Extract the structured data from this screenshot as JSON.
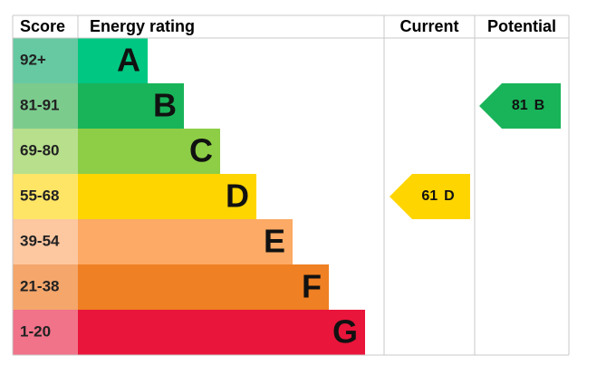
{
  "header": {
    "score": "Score",
    "rating": "Energy rating",
    "current": "Current",
    "potential": "Potential"
  },
  "bands": [
    {
      "score": "92+",
      "letter": "A",
      "color": "#00c781",
      "light": "#66c9a2"
    },
    {
      "score": "81-91",
      "letter": "B",
      "color": "#19b459",
      "light": "#7bcb8d"
    },
    {
      "score": "69-80",
      "letter": "C",
      "color": "#8dce46",
      "light": "#b7df8c"
    },
    {
      "score": "55-68",
      "letter": "D",
      "color": "#ffd500",
      "light": "#ffe566"
    },
    {
      "score": "39-54",
      "letter": "E",
      "color": "#fcaa65",
      "light": "#fdc7a0"
    },
    {
      "score": "21-38",
      "letter": "F",
      "color": "#ef8023",
      "light": "#f4a66b"
    },
    {
      "score": "1-20",
      "letter": "G",
      "color": "#e9153b",
      "light": "#f07389"
    }
  ],
  "current": {
    "value": 61,
    "letter": "D"
  },
  "potential": {
    "value": 81,
    "letter": "B"
  }
}
